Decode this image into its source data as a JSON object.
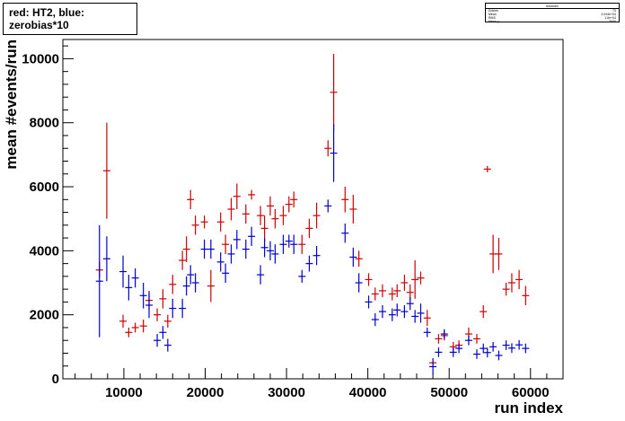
{
  "chart_data": {
    "type": "scatter",
    "title": "red: HT2, blue: zerobias*10",
    "xlabel": "run index",
    "ylabel": "mean #events/run",
    "xlim": [
      2500,
      64000
    ],
    "ylim": [
      0,
      10600
    ],
    "x_ticks": [
      10000,
      20000,
      30000,
      40000,
      50000,
      60000
    ],
    "x_tick_labels": [
      "10000",
      "20000",
      "30000",
      "40000",
      "50000",
      "60000"
    ],
    "y_ticks": [
      0,
      2000,
      4000,
      6000,
      8000,
      10000
    ],
    "y_tick_labels": [
      "0",
      "2000",
      "4000",
      "6000",
      "8000",
      "10000"
    ],
    "grid": false,
    "series": [
      {
        "color": "#cc0000",
        "x": [
          7000,
          7900,
          9900,
          10600,
          11400,
          12400,
          13100,
          14100,
          14800,
          15400,
          16000,
          17200,
          17700,
          18200,
          18800,
          19900,
          20700,
          21900,
          22500,
          23200,
          23900,
          25000,
          25700,
          26800,
          27300,
          28000,
          28600,
          29600,
          30300,
          30900,
          31900,
          32800,
          33700,
          35100,
          35800,
          37200,
          38200,
          38900,
          40100,
          40900,
          41800,
          43000,
          43600,
          44500,
          45200,
          45800,
          46500,
          47300,
          48000,
          48700,
          49400,
          50500,
          51200,
          52400,
          53400,
          54200,
          54700,
          55400,
          56100,
          57000,
          57700,
          58600,
          59400
        ],
        "y": [
          3400,
          6500,
          1800,
          1450,
          1600,
          1650,
          2450,
          2000,
          2500,
          1800,
          2950,
          3700,
          4050,
          5600,
          4800,
          4900,
          2900,
          4900,
          4200,
          5300,
          5700,
          5150,
          5750,
          5100,
          4700,
          5400,
          5000,
          5100,
          5450,
          5600,
          4200,
          4700,
          5100,
          7200,
          8950,
          5600,
          5300,
          3750,
          3100,
          2650,
          2750,
          2650,
          2750,
          3000,
          2700,
          3100,
          3150,
          1900,
          500,
          1250,
          1350,
          1000,
          1050,
          1400,
          1250,
          2100,
          6550,
          3900,
          3900,
          2800,
          3000,
          3100,
          2600
        ],
        "err": [
          250,
          1500,
          200,
          150,
          150,
          200,
          300,
          200,
          300,
          200,
          300,
          300,
          400,
          300,
          300,
          200,
          500,
          300,
          300,
          350,
          400,
          300,
          150,
          300,
          400,
          300,
          300,
          300,
          250,
          250,
          300,
          300,
          400,
          250,
          1200,
          400,
          450,
          250,
          200,
          200,
          200,
          200,
          200,
          250,
          250,
          600,
          200,
          250,
          150,
          150,
          150,
          150,
          150,
          200,
          150,
          200,
          100,
          600,
          500,
          200,
          300,
          300,
          300
        ]
      },
      {
        "color": "#0000cc",
        "x": [
          7000,
          7900,
          9900,
          10600,
          11400,
          12400,
          13100,
          14100,
          14800,
          15400,
          16000,
          17200,
          17700,
          18200,
          18800,
          19900,
          20700,
          21900,
          22500,
          23200,
          23900,
          25000,
          25700,
          26800,
          27300,
          28000,
          28600,
          29600,
          30300,
          30900,
          31900,
          32800,
          33700,
          35100,
          35800,
          37200,
          38200,
          38900,
          40100,
          40900,
          41800,
          43000,
          43600,
          44500,
          45200,
          45800,
          46500,
          47300,
          48000,
          48700,
          49400,
          50500,
          51200,
          52400,
          53400,
          54200,
          54700,
          55400,
          56100,
          57000,
          57700,
          58600,
          59400
        ],
        "y": [
          3050,
          3750,
          3350,
          2850,
          3150,
          2600,
          2300,
          1200,
          1450,
          1050,
          2200,
          2200,
          2900,
          3250,
          3000,
          4050,
          4050,
          3650,
          3300,
          3900,
          4350,
          4050,
          4450,
          3250,
          4100,
          4000,
          3900,
          4200,
          4300,
          4200,
          3200,
          3600,
          3850,
          5400,
          7050,
          4550,
          3800,
          3000,
          2400,
          1850,
          2100,
          2000,
          2150,
          2100,
          2350,
          1950,
          2050,
          1450,
          380,
          830,
          1400,
          830,
          950,
          1200,
          770,
          950,
          820,
          1000,
          730,
          1050,
          960,
          1060,
          950
        ],
        "err": [
          1750,
          700,
          500,
          400,
          300,
          400,
          400,
          200,
          200,
          200,
          300,
          300,
          300,
          300,
          300,
          300,
          300,
          300,
          300,
          300,
          300,
          300,
          300,
          300,
          300,
          300,
          300,
          300,
          200,
          300,
          200,
          250,
          300,
          200,
          900,
          300,
          300,
          300,
          200,
          200,
          200,
          200,
          200,
          200,
          200,
          200,
          300,
          150,
          250,
          150,
          150,
          150,
          150,
          150,
          150,
          150,
          150,
          150,
          150,
          150,
          150,
          150,
          150
        ]
      }
    ]
  },
  "stats_box": {
    "header": "meanev",
    "rows": [
      {
        "label": "Entries",
        "value": "73"
      },
      {
        "label": "Mean",
        "value": "3.044e+04"
      },
      {
        "label": "RMS",
        "value": "1.6e+04"
      },
      {
        "label": "Mean y",
        "value": "3000"
      },
      {
        "label": "RMS y",
        "value": "2000"
      }
    ]
  }
}
